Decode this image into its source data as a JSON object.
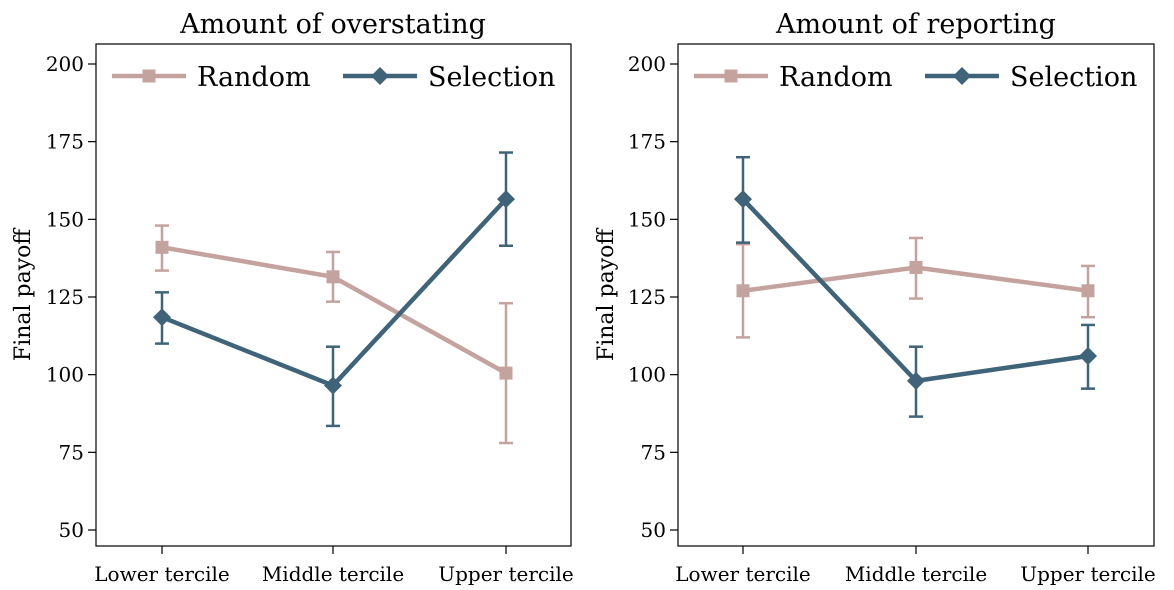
{
  "figure": {
    "shared_ylabel": "Final payoff"
  },
  "colors": {
    "random": "#C4A39E",
    "selection": "#3F6379"
  },
  "chart_data": [
    {
      "type": "line",
      "title": "Amount of overstating",
      "xlabel": "",
      "ylabel": "Final payoff",
      "categories": [
        "Lower tercile",
        "Middle tercile",
        "Upper tercile"
      ],
      "ylim": [
        50,
        200
      ],
      "yticks": [
        50,
        75,
        100,
        125,
        150,
        175,
        200
      ],
      "grid": false,
      "legend": "top",
      "series": [
        {
          "name": "Random",
          "marker": "square",
          "values": [
            141,
            131.5,
            100.5
          ],
          "error_low": [
            133.5,
            123.5,
            78
          ],
          "error_high": [
            148,
            139.5,
            123
          ]
        },
        {
          "name": "Selection",
          "marker": "diamond",
          "values": [
            118.5,
            96.5,
            156.5
          ],
          "error_low": [
            110,
            83.5,
            141.5
          ],
          "error_high": [
            126.5,
            109,
            171.5
          ]
        }
      ]
    },
    {
      "type": "line",
      "title": "Amount of reporting",
      "xlabel": "",
      "ylabel": "Final payoff",
      "categories": [
        "Lower tercile",
        "Middle tercile",
        "Upper tercile"
      ],
      "ylim": [
        50,
        200
      ],
      "yticks": [
        50,
        75,
        100,
        125,
        150,
        175,
        200
      ],
      "grid": false,
      "legend": "top",
      "series": [
        {
          "name": "Random",
          "marker": "square",
          "values": [
            127,
            134.5,
            127
          ],
          "error_low": [
            112,
            124.5,
            118.5
          ],
          "error_high": [
            142,
            144,
            135
          ]
        },
        {
          "name": "Selection",
          "marker": "diamond",
          "values": [
            156.5,
            98,
            106
          ],
          "error_low": [
            142.5,
            86.5,
            95.5
          ],
          "error_high": [
            170,
            109,
            116
          ]
        }
      ]
    }
  ]
}
